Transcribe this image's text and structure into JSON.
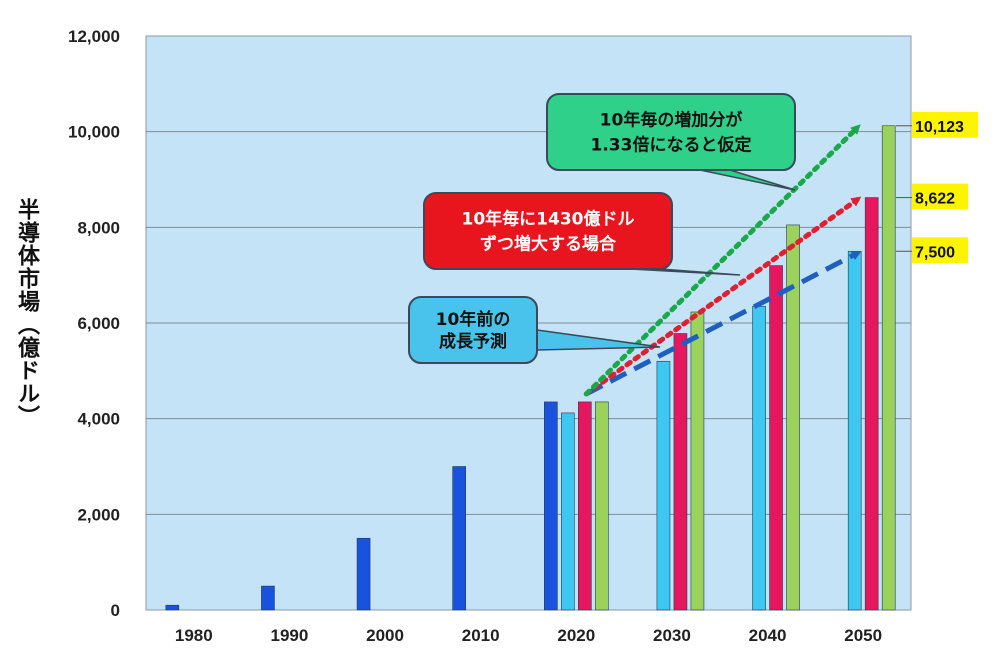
{
  "chart_data": {
    "type": "bar",
    "title": "",
    "ylabel": "半導体市場（億ドル）",
    "xlabel": "",
    "ylim": [
      0,
      12000
    ],
    "yticks": [
      "0",
      "2,000",
      "4,000",
      "6,000",
      "8,000",
      "10,000",
      "12,000"
    ],
    "categories": [
      "1980",
      "1990",
      "2000",
      "2010",
      "2020",
      "2030",
      "2040",
      "2050"
    ],
    "series": [
      {
        "color": "#1a52e0",
        "values": [
          100,
          500,
          1500,
          3000,
          4350,
          null,
          null,
          null
        ]
      },
      {
        "color": "#3ec7f0",
        "values": [
          null,
          null,
          null,
          null,
          4120,
          5200,
          6350,
          7500
        ]
      },
      {
        "color": "#e5175f",
        "values": [
          null,
          null,
          null,
          null,
          4350,
          5780,
          7200,
          8622
        ]
      },
      {
        "color": "#9bd25c",
        "values": [
          null,
          null,
          null,
          null,
          4350,
          6230,
          8050,
          10123
        ]
      }
    ],
    "forecast_arrows": [
      {
        "color": "#1f5fc0",
        "style": "dashed",
        "from": [
          "2020",
          4350
        ],
        "to": [
          "2050",
          7500
        ]
      },
      {
        "color": "#e02030",
        "style": "dotted",
        "from": [
          "2020",
          4350
        ],
        "to": [
          "2050",
          8622
        ]
      },
      {
        "color": "#19a84a",
        "style": "dotted",
        "from": [
          "2020",
          4350
        ],
        "to": [
          "2050",
          10123
        ]
      }
    ],
    "value_labels": [
      {
        "text": "10,123",
        "value": 10123
      },
      {
        "text": "8,622",
        "value": 8622
      },
      {
        "text": "7,500",
        "value": 7500
      }
    ],
    "callouts": [
      {
        "lines": [
          "10年毎の増加分が",
          "1.33倍になると仮定"
        ],
        "fill": "#2fd08a",
        "text_color": "#111111"
      },
      {
        "lines": [
          "10年毎に1430億ドル",
          "ずつ増大する場合"
        ],
        "fill": "#e8141e",
        "text_color": "#ffffff"
      },
      {
        "lines": [
          "10年前の",
          "成長予測"
        ],
        "fill": "#49c3ec",
        "text_color": "#111111"
      }
    ],
    "plot_background": "#c5e3f6",
    "grid": true
  }
}
